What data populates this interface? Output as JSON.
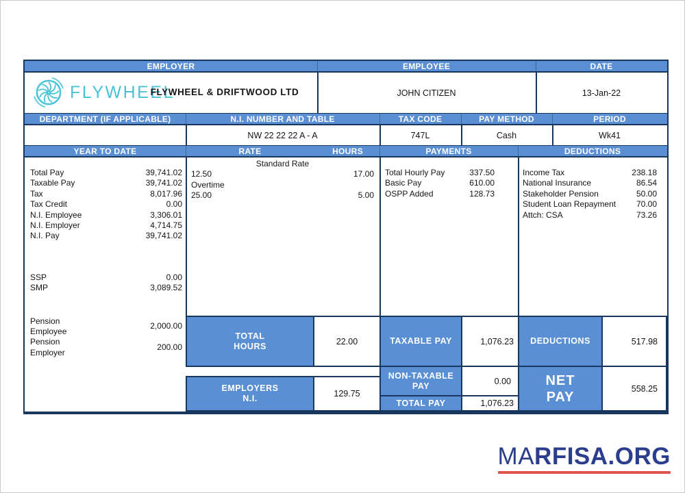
{
  "colors": {
    "header_blue": "#5b8fd4",
    "border_navy": "#17375e",
    "logo_teal": "#48c3d6",
    "brand_blue": "#2b3e8d",
    "brand_red": "#e0544d",
    "text_black": "#141414"
  },
  "masthead": {
    "employer_label": "EMPLOYER",
    "employee_label": "EMPLOYEE",
    "date_label": "DATE"
  },
  "company": {
    "logo_text": "FLYWHEEL",
    "name": "FLYWHEEL & DRIFTWOOD LTD"
  },
  "employee": {
    "name": "JOHN CITIZEN"
  },
  "date": {
    "value": "13-Jan-22"
  },
  "fields": {
    "department_label": "DEPARTMENT (IF APPLICABLE)",
    "department_value": "",
    "ni_label": "N.I. NUMBER AND TABLE",
    "ni_value": "NW 22 22 22 A - A",
    "tax_code_label": "TAX CODE",
    "tax_code_value": "747L",
    "pay_method_label": "PAY METHOD",
    "pay_method_value": "Cash",
    "period_label": "PERIOD",
    "period_value": "Wk41"
  },
  "table": {
    "ytd_header": "YEAR TO DATE",
    "rate_header": "RATE",
    "hours_header": "HOURS",
    "payments_header": "PAYMENTS",
    "deductions_header": "DEDUCTIONS"
  },
  "ytd": {
    "items": [
      {
        "label": "Total Pay",
        "value": "39,741.02"
      },
      {
        "label": "Taxable Pay",
        "value": "39,741.02"
      },
      {
        "label": "Tax",
        "value": "8,017.96"
      },
      {
        "label": "Tax Credit",
        "value": "0.00"
      },
      {
        "label": "N.I. Employee",
        "value": "3,306.01"
      },
      {
        "label": "N.I. Employer",
        "value": "4,714.75"
      },
      {
        "label": "N.I. Pay",
        "value": "39,741.02"
      },
      {
        "label": "SSP",
        "value": "0.00",
        "gap": 45
      },
      {
        "label": "SMP",
        "value": "3,089.52"
      },
      {
        "label": "Pension\nEmployee",
        "value": "2,000.00",
        "gap": 33
      },
      {
        "label": "Pension\nEmployer",
        "value": "200.00"
      }
    ]
  },
  "rate_hours": {
    "lines": [
      {
        "style": "centered",
        "text": "Standard Rate"
      },
      {
        "style": "row",
        "rate": "12.50",
        "hours": "17.00"
      },
      {
        "style": "left",
        "text": "Overtime"
      },
      {
        "style": "row",
        "rate": "25.00",
        "hours": "5.00"
      }
    ]
  },
  "payments": {
    "items": [
      {
        "label": "Total Hourly Pay",
        "value": "337.50"
      },
      {
        "label": "Basic Pay",
        "value": "610.00"
      },
      {
        "label": "OSPP Added",
        "value": "128.73"
      }
    ]
  },
  "deductions": {
    "items": [
      {
        "label": "Income Tax",
        "value": "238.18"
      },
      {
        "label": "National Insurance",
        "value": "86.54"
      },
      {
        "label": "Stakeholder Pension",
        "value": "50.00"
      },
      {
        "label": "Student Loan Repayment",
        "value": "70.00"
      },
      {
        "label": "Attch: CSA",
        "value": "73.26"
      }
    ]
  },
  "totals": {
    "total_hours_label": "TOTAL\nHOURS",
    "total_hours_value": "22.00",
    "employers_ni_label": "EMPLOYERS\nN.I.",
    "employers_ni_value": "129.75",
    "taxable_pay_label": "TAXABLE PAY",
    "taxable_pay_value": "1,076.23",
    "non_taxable_pay_label": "NON-TAXABLE\nPAY",
    "non_taxable_pay_value": "0.00",
    "total_pay_label": "TOTAL PAY",
    "total_pay_value": "1,076.23",
    "deductions_label": "DEDUCTIONS",
    "deductions_value": "517.98",
    "net_pay_label": "NET\nPAY",
    "net_pay_value": "558.25"
  },
  "brand": {
    "name_regular": "MA",
    "name_bold": "RFISA.ORG"
  }
}
